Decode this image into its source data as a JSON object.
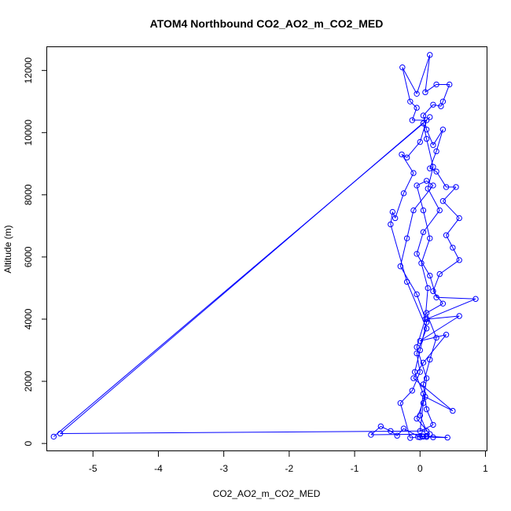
{
  "chart_data": {
    "type": "scatter",
    "title": "ATOM4 Northbound CO2_AO2_m_CO2_MED",
    "xlabel": "CO2_AO2_m_CO2_MED",
    "ylabel": "Altitude (m)",
    "xlim": [
      -5.7,
      1.03
    ],
    "ylim": [
      -250,
      12750
    ],
    "x_ticks": [
      -5,
      -4,
      -3,
      -2,
      -1,
      0,
      1
    ],
    "y_ticks": [
      0,
      2000,
      4000,
      6000,
      8000,
      10000,
      12000
    ],
    "x_tick_labels": [
      "-5",
      "-4",
      "-3",
      "-2",
      "-1",
      "0",
      "1"
    ],
    "y_tick_labels": [
      "0",
      "2000",
      "4000",
      "6000",
      "8000",
      "10000",
      "12000"
    ],
    "grid": false,
    "marker": "open-circle",
    "connected": true,
    "series_color": "#0000ff",
    "points": [
      {
        "x": -5.6,
        "y": 220
      },
      {
        "x": 0.05,
        "y": 10300
      },
      {
        "x": 0.1,
        "y": 9800
      },
      {
        "x": 0.2,
        "y": 8900
      },
      {
        "x": 0.12,
        "y": 8200
      },
      {
        "x": 0.3,
        "y": 7500
      },
      {
        "x": 0.05,
        "y": 6800
      },
      {
        "x": -0.05,
        "y": 6100
      },
      {
        "x": 0.15,
        "y": 5400
      },
      {
        "x": 0.25,
        "y": 4700
      },
      {
        "x": 0.85,
        "y": 4650
      },
      {
        "x": 0.1,
        "y": 4000
      },
      {
        "x": 0.6,
        "y": 4100
      },
      {
        "x": 0.0,
        "y": 3300
      },
      {
        "x": 0.4,
        "y": 3500
      },
      {
        "x": 0.05,
        "y": 2600
      },
      {
        "x": -0.1,
        "y": 2100
      },
      {
        "x": 0.5,
        "y": 1050
      },
      {
        "x": 0.08,
        "y": 1500
      },
      {
        "x": -0.05,
        "y": 800
      },
      {
        "x": 0.15,
        "y": 300
      },
      {
        "x": -0.75,
        "y": 280
      },
      {
        "x": -0.6,
        "y": 550
      },
      {
        "x": -0.45,
        "y": 400
      },
      {
        "x": -0.35,
        "y": 250
      },
      {
        "x": -0.25,
        "y": 480
      },
      {
        "x": 0.0,
        "y": 200
      },
      {
        "x": 0.05,
        "y": 220
      },
      {
        "x": 0.1,
        "y": 210
      },
      {
        "x": 0.2,
        "y": 200
      },
      {
        "x": 0.42,
        "y": 190
      },
      {
        "x": 0.1,
        "y": 240
      },
      {
        "x": 0.03,
        "y": 230
      },
      {
        "x": -0.03,
        "y": 210
      },
      {
        "x": -0.15,
        "y": 180
      },
      {
        "x": -0.3,
        "y": 1300
      },
      {
        "x": -0.12,
        "y": 1700
      },
      {
        "x": 0.0,
        "y": 2300
      },
      {
        "x": -0.05,
        "y": 2900
      },
      {
        "x": 0.1,
        "y": 3700
      },
      {
        "x": -0.2,
        "y": 5200
      },
      {
        "x": -0.45,
        "y": 7050
      },
      {
        "x": -0.42,
        "y": 7450
      },
      {
        "x": -0.38,
        "y": 7250
      },
      {
        "x": -0.25,
        "y": 8050
      },
      {
        "x": -0.1,
        "y": 8700
      },
      {
        "x": -0.28,
        "y": 9300
      },
      {
        "x": -0.2,
        "y": 9200
      },
      {
        "x": 0.0,
        "y": 9700
      },
      {
        "x": 0.1,
        "y": 10400
      },
      {
        "x": -0.12,
        "y": 10400
      },
      {
        "x": -0.05,
        "y": 10800
      },
      {
        "x": -0.15,
        "y": 11000
      },
      {
        "x": -0.27,
        "y": 12100
      },
      {
        "x": -0.05,
        "y": 11250
      },
      {
        "x": 0.15,
        "y": 12500
      },
      {
        "x": 0.08,
        "y": 11300
      },
      {
        "x": 0.25,
        "y": 11550
      },
      {
        "x": 0.45,
        "y": 11550
      },
      {
        "x": 0.35,
        "y": 11000
      },
      {
        "x": 0.32,
        "y": 10850
      },
      {
        "x": 0.2,
        "y": 10900
      },
      {
        "x": 0.05,
        "y": 10550
      },
      {
        "x": 0.1,
        "y": 10100
      },
      {
        "x": 0.2,
        "y": 9600
      },
      {
        "x": 0.35,
        "y": 10100
      },
      {
        "x": 0.25,
        "y": 9400
      },
      {
        "x": 0.15,
        "y": 8850
      },
      {
        "x": 0.25,
        "y": 8750
      },
      {
        "x": 0.4,
        "y": 8250
      },
      {
        "x": 0.55,
        "y": 8250
      },
      {
        "x": 0.35,
        "y": 7800
      },
      {
        "x": 0.6,
        "y": 7250
      },
      {
        "x": 0.4,
        "y": 6700
      },
      {
        "x": 0.5,
        "y": 6300
      },
      {
        "x": 0.6,
        "y": 5900
      },
      {
        "x": 0.3,
        "y": 5450
      },
      {
        "x": 0.2,
        "y": 4900
      },
      {
        "x": 0.35,
        "y": 4500
      },
      {
        "x": 0.1,
        "y": 4200
      },
      {
        "x": 0.25,
        "y": 3400
      },
      {
        "x": 0.15,
        "y": 2700
      },
      {
        "x": 0.05,
        "y": 1900
      },
      {
        "x": 0.1,
        "y": 1100
      },
      {
        "x": 0.2,
        "y": 600
      },
      {
        "x": 0.0,
        "y": 400
      },
      {
        "x": 0.05,
        "y": 1300
      },
      {
        "x": 0.1,
        "y": 2100
      },
      {
        "x": -0.05,
        "y": 3100
      },
      {
        "x": 0.08,
        "y": 4000
      },
      {
        "x": 0.12,
        "y": 5000
      },
      {
        "x": 0.02,
        "y": 5800
      },
      {
        "x": 0.15,
        "y": 6600
      },
      {
        "x": 0.05,
        "y": 7500
      },
      {
        "x": -0.05,
        "y": 8300
      },
      {
        "x": 0.1,
        "y": 8450
      },
      {
        "x": 0.2,
        "y": 8300
      },
      {
        "x": -0.1,
        "y": 7500
      },
      {
        "x": -0.2,
        "y": 6600
      },
      {
        "x": -0.3,
        "y": 5700
      },
      {
        "x": -0.05,
        "y": 4800
      },
      {
        "x": 0.1,
        "y": 3900
      },
      {
        "x": 0.0,
        "y": 3000
      },
      {
        "x": -0.08,
        "y": 2300
      },
      {
        "x": 0.05,
        "y": 1600
      },
      {
        "x": 0.0,
        "y": 900
      },
      {
        "x": 0.1,
        "y": 400
      },
      {
        "x": -5.5,
        "y": 320
      },
      {
        "x": 0.15,
        "y": 10500
      }
    ]
  }
}
